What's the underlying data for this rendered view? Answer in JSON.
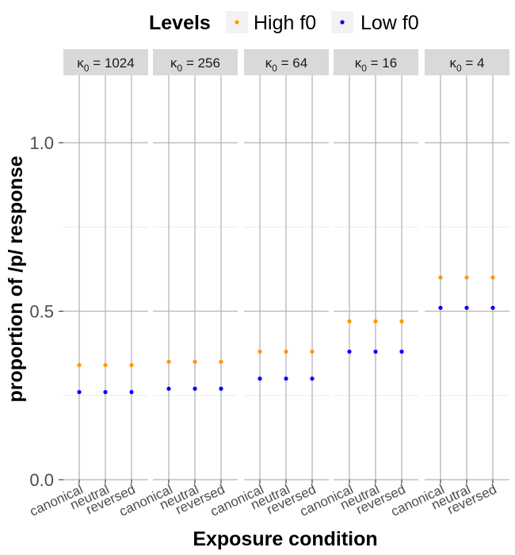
{
  "chart_data": {
    "type": "scatter",
    "xlabel": "Exposure condition",
    "ylabel": "proportion of /p/ response",
    "ylim": [
      0,
      1.2
    ],
    "y_ticks": [
      0.0,
      0.5,
      1.0
    ],
    "y_tick_labels": [
      "0.0",
      "0.5",
      "1.0"
    ],
    "y_minor_ticks": [
      0.25,
      0.75
    ],
    "categories": [
      "canonical",
      "neutral",
      "reversed"
    ],
    "legend": {
      "title": "Levels",
      "placement": "top",
      "entries": [
        {
          "label": "High f0",
          "color": "#FF9900"
        },
        {
          "label": "Low f0",
          "color": "#0000FF"
        }
      ]
    },
    "grid": true,
    "facets": [
      {
        "strip_prefix": "κ",
        "strip_sub": "0",
        "strip_suffix": " = 1024",
        "series": [
          {
            "name": "High f0",
            "color": "#FF9900",
            "values": [
              0.34,
              0.34,
              0.34
            ]
          },
          {
            "name": "Low f0",
            "color": "#0000FF",
            "values": [
              0.26,
              0.26,
              0.26
            ]
          }
        ]
      },
      {
        "strip_prefix": "κ",
        "strip_sub": "0",
        "strip_suffix": " = 256",
        "series": [
          {
            "name": "High f0",
            "color": "#FF9900",
            "values": [
              0.35,
              0.35,
              0.35
            ]
          },
          {
            "name": "Low f0",
            "color": "#0000FF",
            "values": [
              0.27,
              0.27,
              0.27
            ]
          }
        ]
      },
      {
        "strip_prefix": "κ",
        "strip_sub": "0",
        "strip_suffix": " = 64",
        "series": [
          {
            "name": "High f0",
            "color": "#FF9900",
            "values": [
              0.38,
              0.38,
              0.38
            ]
          },
          {
            "name": "Low f0",
            "color": "#0000FF",
            "values": [
              0.3,
              0.3,
              0.3
            ]
          }
        ]
      },
      {
        "strip_prefix": "κ",
        "strip_sub": "0",
        "strip_suffix": " = 16",
        "series": [
          {
            "name": "High f0",
            "color": "#FF9900",
            "values": [
              0.47,
              0.47,
              0.47
            ]
          },
          {
            "name": "Low f0",
            "color": "#0000FF",
            "values": [
              0.38,
              0.38,
              0.38
            ]
          }
        ]
      },
      {
        "strip_prefix": "κ",
        "strip_sub": "0",
        "strip_suffix": " = 4",
        "series": [
          {
            "name": "High f0",
            "color": "#FF9900",
            "values": [
              0.6,
              0.6,
              0.6
            ]
          },
          {
            "name": "Low f0",
            "color": "#0000FF",
            "values": [
              0.51,
              0.51,
              0.51
            ]
          }
        ]
      }
    ]
  }
}
